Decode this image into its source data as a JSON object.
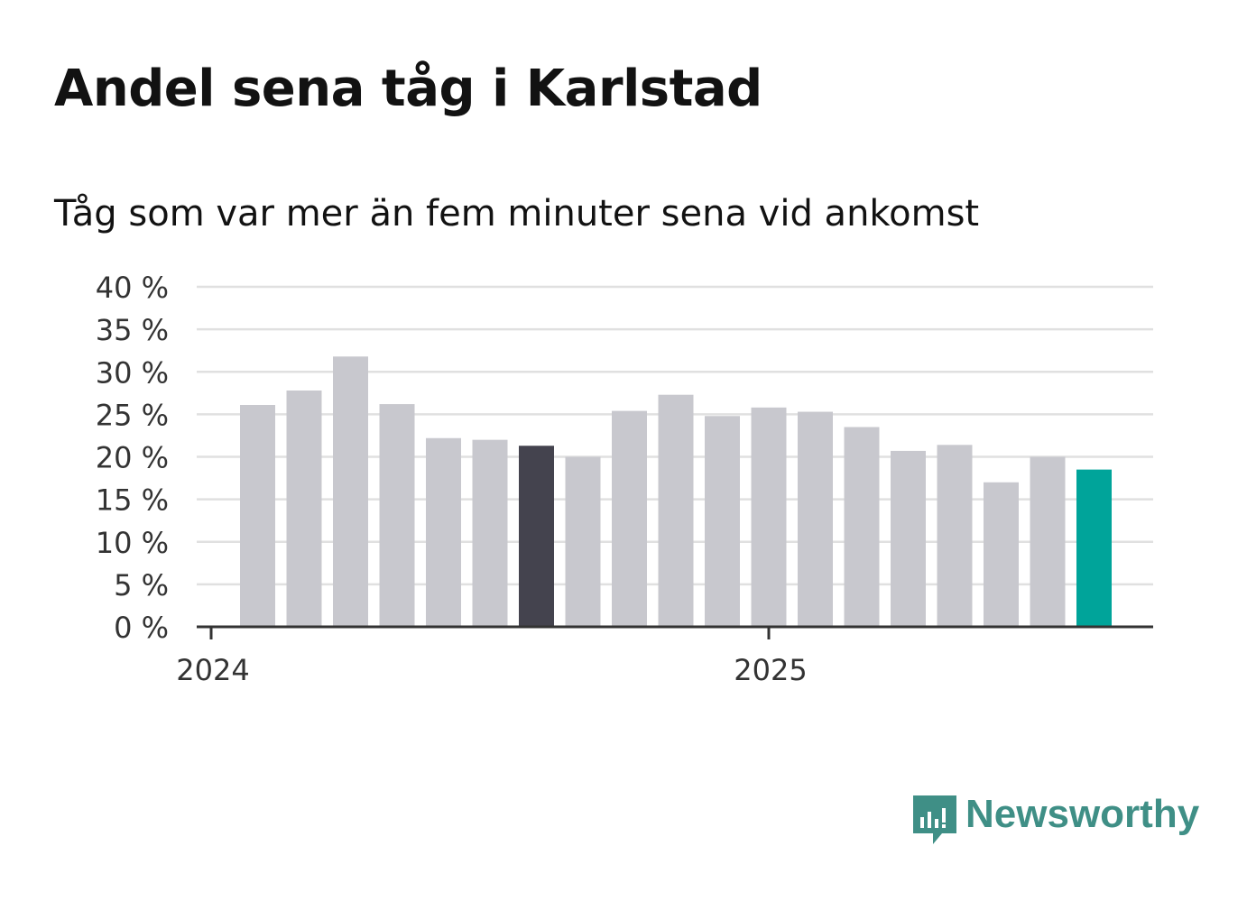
{
  "chart_data": {
    "type": "bar",
    "title": "Andel sena tåg i Karlstad",
    "subtitle": "Tåg som var mer än fem minuter sena vid ankomst",
    "xlabel": "",
    "ylabel": "",
    "ylim": [
      0,
      40
    ],
    "yticks": [
      {
        "value": 0,
        "label": "0 %"
      },
      {
        "value": 5,
        "label": "5 %"
      },
      {
        "value": 10,
        "label": "10 %"
      },
      {
        "value": 15,
        "label": "15 %"
      },
      {
        "value": 20,
        "label": "20 %"
      },
      {
        "value": 25,
        "label": "25 %"
      },
      {
        "value": 30,
        "label": "30 %"
      },
      {
        "value": 35,
        "label": "35 %"
      },
      {
        "value": 40,
        "label": "40 %"
      }
    ],
    "xticks": [
      {
        "value": "2024-01",
        "label": "2024"
      },
      {
        "value": "2025-01",
        "label": "2025"
      }
    ],
    "categories": [
      "2024-02",
      "2024-03",
      "2024-04",
      "2024-05",
      "2024-06",
      "2024-07",
      "2024-08",
      "2024-09",
      "2024-10",
      "2024-11",
      "2024-12",
      "2025-01",
      "2025-02",
      "2025-03",
      "2025-04",
      "2025-05",
      "2025-06",
      "2025-07",
      "2025-08"
    ],
    "values": [
      26.1,
      27.8,
      31.8,
      26.2,
      22.2,
      22.0,
      21.3,
      20.0,
      25.4,
      27.3,
      24.8,
      25.8,
      25.3,
      23.5,
      20.7,
      21.4,
      17.0,
      20.0,
      18.5
    ],
    "grid": true,
    "legend": "none",
    "colors": {
      "default": "#c8c8ce",
      "highlight": "#44434e",
      "latest": "#00a49a",
      "grid": "#e0e0e0",
      "axis": "#333333",
      "gridline_minor": "#d8d8d8"
    },
    "highlight_index": 6,
    "latest_index": 18
  },
  "brand": {
    "name": "Newsworthy",
    "color": "#3f8f86",
    "icon": "newsworthy-logo-icon"
  }
}
